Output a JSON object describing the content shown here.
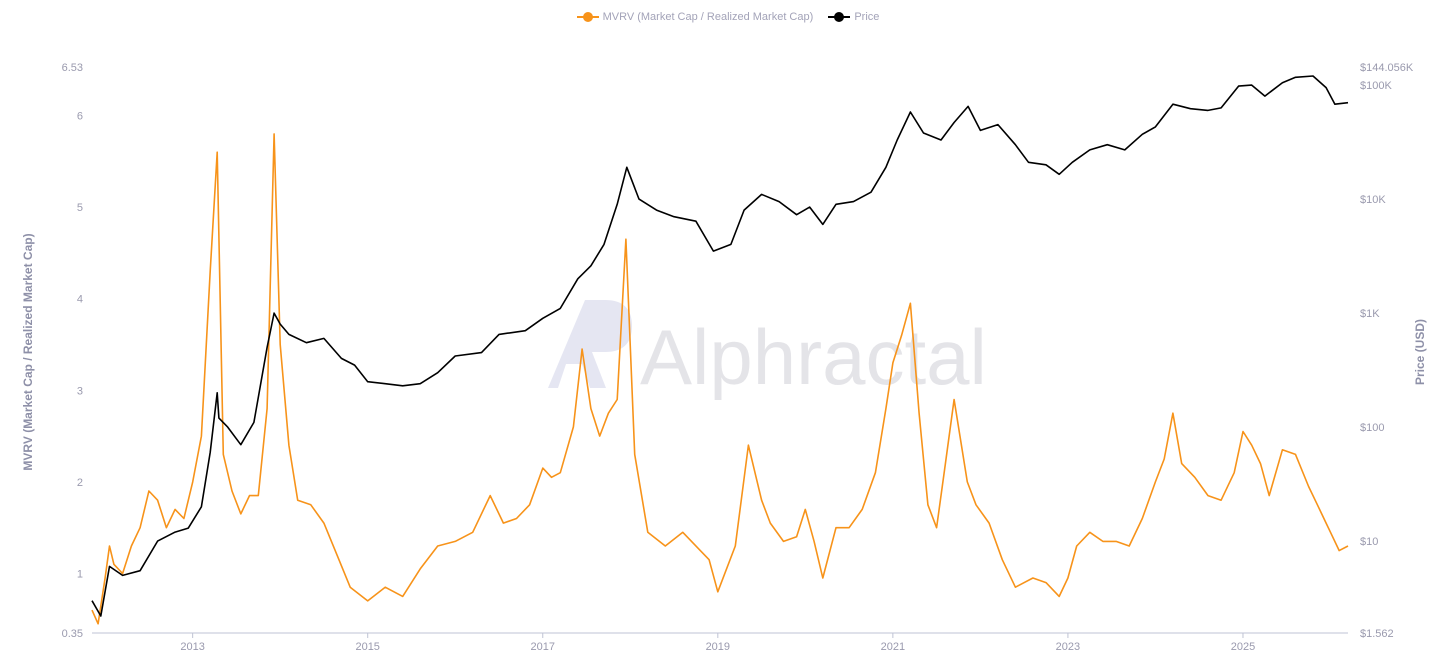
{
  "legend": {
    "mvrv_label": "MVRV (Market Cap / Realized Market Cap)",
    "price_label": "Price"
  },
  "watermark": "Alphractal",
  "colors": {
    "mvrv": "#f7931a",
    "price": "#000000",
    "grid": "#e6e6ee",
    "text": "#9a9aae"
  },
  "chart_data": {
    "type": "line",
    "title": "",
    "xlabel": "",
    "ylabel": "MVRV (Market Cap / Realized Market Cap)",
    "y2label": "Price (USD)",
    "legend_position": "top-center",
    "grid": false,
    "xlim": [
      2011.85,
      2026.2
    ],
    "x_ticks": [
      "2013",
      "2015",
      "2017",
      "2019",
      "2021",
      "2023",
      "2025"
    ],
    "ylim": [
      0.35,
      6.53
    ],
    "y_ticks": [
      "0.35",
      "1",
      "2",
      "3",
      "4",
      "5",
      "6",
      "6.53"
    ],
    "y2_scale": "log",
    "y2lim": [
      1.562,
      144056
    ],
    "y2_ticks": [
      "$1.562",
      "$10",
      "$100",
      "$1K",
      "$10K",
      "$100K",
      "$144.056K"
    ],
    "series": [
      {
        "name": "MVRV (Market Cap / Realized Market Cap)",
        "axis": "left",
        "x": [
          2011.85,
          2011.92,
          2012.0,
          2012.05,
          2012.1,
          2012.2,
          2012.3,
          2012.4,
          2012.5,
          2012.6,
          2012.7,
          2012.8,
          2012.9,
          2013.0,
          2013.1,
          2013.2,
          2013.28,
          2013.35,
          2013.45,
          2013.55,
          2013.65,
          2013.75,
          2013.85,
          2013.93,
          2014.0,
          2014.1,
          2014.2,
          2014.35,
          2014.5,
          2014.65,
          2014.8,
          2015.0,
          2015.2,
          2015.4,
          2015.6,
          2015.8,
          2016.0,
          2016.2,
          2016.4,
          2016.55,
          2016.7,
          2016.85,
          2017.0,
          2017.1,
          2017.2,
          2017.35,
          2017.45,
          2017.55,
          2017.65,
          2017.75,
          2017.85,
          2017.95,
          2018.05,
          2018.2,
          2018.4,
          2018.6,
          2018.8,
          2018.9,
          2019.0,
          2019.2,
          2019.35,
          2019.5,
          2019.6,
          2019.75,
          2019.9,
          2020.0,
          2020.1,
          2020.2,
          2020.35,
          2020.5,
          2020.65,
          2020.8,
          2020.92,
          2021.0,
          2021.1,
          2021.2,
          2021.3,
          2021.4,
          2021.5,
          2021.6,
          2021.7,
          2021.85,
          2021.95,
          2022.1,
          2022.25,
          2022.4,
          2022.5,
          2022.6,
          2022.75,
          2022.9,
          2023.0,
          2023.1,
          2023.25,
          2023.4,
          2023.55,
          2023.7,
          2023.85,
          2024.0,
          2024.1,
          2024.2,
          2024.3,
          2024.45,
          2024.6,
          2024.75,
          2024.9,
          2025.0,
          2025.1,
          2025.2,
          2025.3,
          2025.45,
          2025.6,
          2025.75,
          2025.85,
          2025.95,
          2026.0,
          2026.1,
          2026.2
        ],
        "values": [
          0.6,
          0.45,
          0.95,
          1.3,
          1.1,
          1.0,
          1.3,
          1.5,
          1.9,
          1.8,
          1.5,
          1.7,
          1.6,
          2.0,
          2.5,
          4.3,
          5.6,
          2.3,
          1.9,
          1.65,
          1.85,
          1.85,
          2.8,
          5.8,
          3.5,
          2.4,
          1.8,
          1.75,
          1.55,
          1.2,
          0.85,
          0.7,
          0.85,
          0.75,
          1.05,
          1.3,
          1.35,
          1.45,
          1.85,
          1.55,
          1.6,
          1.75,
          2.15,
          2.05,
          2.1,
          2.6,
          3.45,
          2.8,
          2.5,
          2.75,
          2.9,
          4.65,
          2.3,
          1.45,
          1.3,
          1.45,
          1.25,
          1.15,
          0.8,
          1.3,
          2.4,
          1.8,
          1.55,
          1.35,
          1.4,
          1.7,
          1.35,
          0.95,
          1.5,
          1.5,
          1.7,
          2.1,
          2.8,
          3.3,
          3.6,
          3.95,
          2.75,
          1.75,
          1.5,
          2.2,
          2.9,
          2.0,
          1.75,
          1.55,
          1.15,
          0.85,
          0.9,
          0.95,
          0.9,
          0.75,
          0.95,
          1.3,
          1.45,
          1.35,
          1.35,
          1.3,
          1.6,
          2.0,
          2.25,
          2.75,
          2.2,
          2.05,
          1.85,
          1.8,
          2.1,
          2.55,
          2.4,
          2.2,
          1.85,
          2.35,
          2.3,
          1.95,
          1.75,
          1.55,
          1.45,
          1.25,
          1.3
        ]
      },
      {
        "name": "Price",
        "axis": "right",
        "x": [
          2011.85,
          2011.95,
          2012.05,
          2012.2,
          2012.4,
          2012.6,
          2012.8,
          2012.95,
          2013.1,
          2013.2,
          2013.28,
          2013.3,
          2013.4,
          2013.55,
          2013.7,
          2013.85,
          2013.93,
          2014.0,
          2014.1,
          2014.3,
          2014.5,
          2014.7,
          2014.85,
          2015.0,
          2015.2,
          2015.4,
          2015.6,
          2015.8,
          2016.0,
          2016.3,
          2016.5,
          2016.8,
          2017.0,
          2017.2,
          2017.4,
          2017.55,
          2017.7,
          2017.85,
          2017.96,
          2018.1,
          2018.3,
          2018.5,
          2018.75,
          2018.95,
          2019.15,
          2019.3,
          2019.5,
          2019.7,
          2019.9,
          2020.05,
          2020.2,
          2020.35,
          2020.55,
          2020.75,
          2020.92,
          2021.05,
          2021.2,
          2021.35,
          2021.55,
          2021.7,
          2021.86,
          2022.0,
          2022.2,
          2022.4,
          2022.55,
          2022.75,
          2022.9,
          2023.05,
          2023.25,
          2023.45,
          2023.65,
          2023.85,
          2024.0,
          2024.2,
          2024.4,
          2024.6,
          2024.75,
          2024.95,
          2025.1,
          2025.25,
          2025.45,
          2025.6,
          2025.8,
          2025.95,
          2026.05,
          2026.2
        ],
        "values": [
          3,
          2.2,
          6,
          5,
          5.5,
          10,
          12,
          13,
          20,
          60,
          200,
          120,
          100,
          70,
          110,
          500,
          1000,
          800,
          650,
          550,
          600,
          400,
          350,
          250,
          240,
          230,
          240,
          300,
          420,
          450,
          650,
          700,
          900,
          1100,
          2000,
          2600,
          4000,
          9000,
          19000,
          10000,
          8000,
          7000,
          6400,
          3500,
          4000,
          8000,
          11000,
          9500,
          7300,
          8500,
          6000,
          9000,
          9500,
          11500,
          19000,
          33000,
          58000,
          38000,
          33000,
          47000,
          65000,
          40000,
          45000,
          30000,
          21000,
          20000,
          16500,
          21000,
          27000,
          30000,
          27000,
          37000,
          43000,
          68000,
          62000,
          60000,
          63000,
          98000,
          100000,
          80000,
          105000,
          117000,
          120000,
          95000,
          68000,
          70000
        ]
      }
    ]
  }
}
